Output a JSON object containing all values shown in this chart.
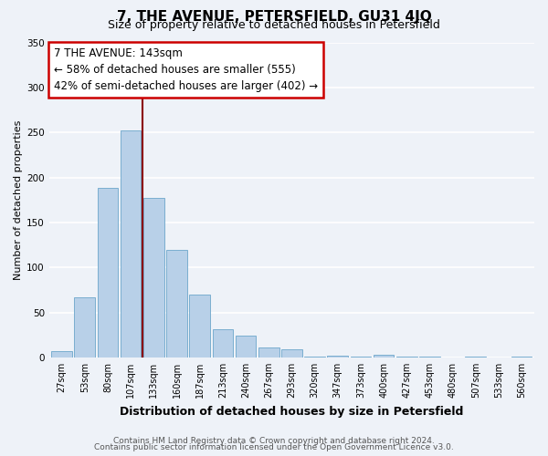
{
  "title": "7, THE AVENUE, PETERSFIELD, GU31 4JQ",
  "subtitle": "Size of property relative to detached houses in Petersfield",
  "xlabel": "Distribution of detached houses by size in Petersfield",
  "ylabel": "Number of detached properties",
  "bar_color": "#b8d0e8",
  "bar_edge_color": "#7aaed0",
  "vline_color": "#8b0000",
  "vline_x_index": 3,
  "annotation_line1": "7 THE AVENUE: 143sqm",
  "annotation_line2": "← 58% of detached houses are smaller (555)",
  "annotation_line3": "42% of semi-detached houses are larger (402) →",
  "categories": [
    "27sqm",
    "53sqm",
    "80sqm",
    "107sqm",
    "133sqm",
    "160sqm",
    "187sqm",
    "213sqm",
    "240sqm",
    "267sqm",
    "293sqm",
    "320sqm",
    "347sqm",
    "373sqm",
    "400sqm",
    "427sqm",
    "453sqm",
    "480sqm",
    "507sqm",
    "533sqm",
    "560sqm"
  ],
  "values": [
    7,
    67,
    188,
    252,
    177,
    119,
    70,
    31,
    24,
    11,
    9,
    1,
    2,
    1,
    3,
    1,
    1,
    0,
    1,
    0,
    1
  ],
  "ylim": [
    0,
    350
  ],
  "yticks": [
    0,
    50,
    100,
    150,
    200,
    250,
    300,
    350
  ],
  "footnote1": "Contains HM Land Registry data © Crown copyright and database right 2024.",
  "footnote2": "Contains public sector information licensed under the Open Government Licence v3.0.",
  "background_color": "#eef2f8",
  "grid_color": "#ffffff",
  "title_fontsize": 11,
  "subtitle_fontsize": 9,
  "xlabel_fontsize": 9,
  "ylabel_fontsize": 8,
  "tick_fontsize": 7,
  "annotation_fontsize": 8.5,
  "footnote_fontsize": 6.5
}
